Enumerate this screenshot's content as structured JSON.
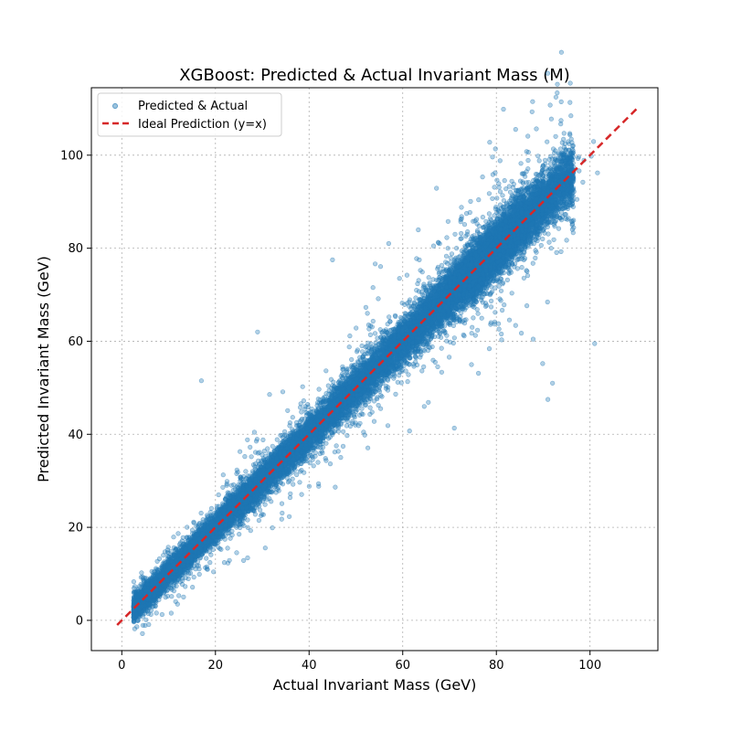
{
  "chart_data": {
    "type": "scatter",
    "title": "XGBoost: Predicted & Actual Invariant Mass (M)",
    "xlabel": "Actual Invariant Mass (GeV)",
    "ylabel": "Predicted Invariant Mass (GeV)",
    "xlim": [
      -6.5,
      114.5
    ],
    "ylim": [
      -6.5,
      114.5
    ],
    "xticks": [
      0,
      20,
      40,
      60,
      80,
      100
    ],
    "yticks": [
      0,
      20,
      40,
      60,
      80,
      100
    ],
    "grid": true,
    "legend_position": "top-left",
    "series": [
      {
        "name": "Predicted & Actual",
        "kind": "scatter",
        "color": "#1f77b4",
        "sample": {
          "x_range": [
            2,
            110
          ],
          "relation": "y ≈ x with scatter increasing with mass",
          "approx_points": 20000,
          "outliers": [
            {
              "x": 17,
              "y": 51.5
            },
            {
              "x": 29,
              "y": 62
            },
            {
              "x": 45,
              "y": 77.5
            },
            {
              "x": 57,
              "y": 81
            },
            {
              "x": 91,
              "y": 47.5
            },
            {
              "x": 101,
              "y": 59.5
            },
            {
              "x": 92,
              "y": 51
            }
          ]
        }
      },
      {
        "name": "Ideal Prediction (y=x)",
        "kind": "line",
        "color": "#d62728",
        "dash": "dashed",
        "x": [
          -1,
          110
        ],
        "y": [
          -1,
          110
        ]
      }
    ]
  }
}
